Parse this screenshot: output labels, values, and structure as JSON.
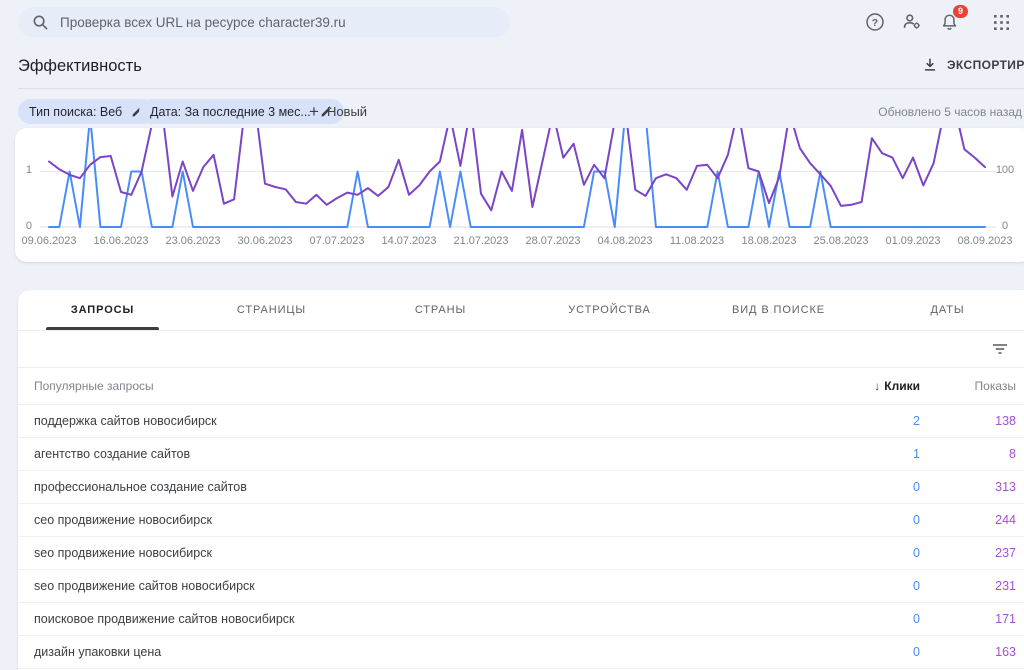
{
  "topbar": {
    "search_placeholder": "Проверка всех URL на ресурсе character39.ru",
    "badge_count": "9"
  },
  "header": {
    "title": "Эффективность",
    "export_label": "ЭКСПОРТИРОВАТЬ"
  },
  "filters": {
    "chips": [
      {
        "label": "Тип поиска: Веб"
      },
      {
        "label": "Дата: За последние 3 мес..."
      }
    ],
    "new_label": "Новый",
    "updated_text": "Обновлено 5 часов назад"
  },
  "colors": {
    "clicks": "#4a8cf7",
    "impressions_line": "#7a45c6",
    "impressions_text": "#a64fd2",
    "grid_zero": "#d9dce1",
    "grid_top": "#e6e9ed",
    "badge_red": "#ea4335",
    "chip_bg": "#d7e2f9"
  },
  "chart_data": {
    "type": "line",
    "title": "",
    "x_start_date": "09.06.2023",
    "x_end_date": "08.09.2023",
    "points": 92,
    "x_tick_labels": [
      "09.06.2023",
      "16.06.2023",
      "23.06.2023",
      "30.06.2023",
      "07.07.2023",
      "14.07.2023",
      "21.07.2023",
      "28.07.2023",
      "04.08.2023",
      "11.08.2023",
      "18.08.2023",
      "25.08.2023",
      "01.09.2023",
      "08.09.2023"
    ],
    "left_axis": {
      "labels": [
        "1",
        "0"
      ],
      "min": 0,
      "visible_tick": 1
    },
    "right_axis": {
      "labels": [
        "100",
        "0"
      ],
      "min": 0,
      "visible_tick": 100
    },
    "grid": true,
    "legend_position": "none",
    "series": [
      {
        "name": "Клики",
        "axis": "left",
        "color": "#4a8cf7",
        "values": [
          0,
          0,
          1,
          0,
          2,
          0,
          0,
          0,
          1,
          1,
          0,
          0,
          0,
          1,
          0,
          0,
          0,
          0,
          0,
          0,
          0,
          0,
          0,
          0,
          0,
          0,
          0,
          0,
          0,
          0,
          1,
          0,
          0,
          0,
          0,
          0,
          0,
          0,
          1,
          0,
          1,
          0,
          0,
          0,
          0,
          0,
          0,
          0,
          0,
          0,
          0,
          0,
          0,
          1,
          1,
          0,
          2,
          2,
          2,
          0,
          0,
          0,
          0,
          0,
          0,
          1,
          0,
          0,
          0,
          1,
          0,
          1,
          0,
          0,
          0,
          1,
          0,
          0,
          0,
          0,
          0,
          0,
          0,
          0,
          0,
          0,
          0,
          0,
          0,
          0,
          0,
          0
        ]
      },
      {
        "name": "Показы",
        "axis": "right",
        "color": "#7a45c6",
        "values": [
          118,
          104,
          94,
          88,
          112,
          126,
          128,
          63,
          58,
          100,
          185,
          210,
          55,
          118,
          65,
          108,
          130,
          42,
          50,
          205,
          225,
          78,
          72,
          68,
          45,
          42,
          58,
          40,
          52,
          62,
          58,
          70,
          56,
          72,
          121,
          58,
          75,
          100,
          118,
          200,
          110,
          215,
          60,
          30,
          100,
          65,
          175,
          36,
          120,
          205,
          125,
          150,
          76,
          112,
          88,
          190,
          215,
          67,
          56,
          88,
          95,
          88,
          67,
          110,
          112,
          88,
          130,
          210,
          106,
          100,
          43,
          90,
          205,
          142,
          115,
          95,
          74,
          38,
          40,
          45,
          160,
          133,
          125,
          88,
          125,
          75,
          115,
          205,
          220,
          140,
          125,
          108
        ]
      }
    ]
  },
  "tabs": {
    "active_index": 0,
    "items": [
      "ЗАПРОСЫ",
      "СТРАНИЦЫ",
      "СТРАНЫ",
      "УСТРОЙСТВА",
      "ВИД В ПОИСКЕ",
      "ДАТЫ"
    ]
  },
  "table": {
    "first_col_header": "Популярные запросы",
    "sort_arrow": "↓",
    "col_clicks": "Клики",
    "col_impressions": "Показы",
    "rows": [
      {
        "query": "поддержка сайтов новосибирск",
        "clicks": "2",
        "impressions": "138"
      },
      {
        "query": "агентство создание сайтов",
        "clicks": "1",
        "impressions": "8"
      },
      {
        "query": "профессиональное создание сайтов",
        "clicks": "0",
        "impressions": "313"
      },
      {
        "query": "сео продвижение новосибирск",
        "clicks": "0",
        "impressions": "244"
      },
      {
        "query": "seo продвижение новосибирск",
        "clicks": "0",
        "impressions": "237"
      },
      {
        "query": "seo продвижение сайтов новосибирск",
        "clicks": "0",
        "impressions": "231"
      },
      {
        "query": "поисковое продвижение сайтов новосибирск",
        "clicks": "0",
        "impressions": "171"
      },
      {
        "query": "дизайн упаковки цена",
        "clicks": "0",
        "impressions": "163"
      }
    ]
  }
}
